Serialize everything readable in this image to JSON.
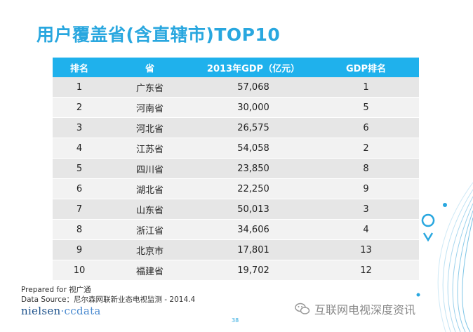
{
  "title": "用户覆盖省(含直辖市)TOP10",
  "table": {
    "headers": [
      "排名",
      "省",
      "2013年GDP（亿元）",
      "GDP排名"
    ],
    "rows": [
      [
        "1",
        "广东省",
        "57,068",
        "1"
      ],
      [
        "2",
        "河南省",
        "30,000",
        "5"
      ],
      [
        "3",
        "河北省",
        "26,575",
        "6"
      ],
      [
        "4",
        "江苏省",
        "54,058",
        "2"
      ],
      [
        "5",
        "四川省",
        "23,850",
        "8"
      ],
      [
        "6",
        "湖北省",
        "22,250",
        "9"
      ],
      [
        "7",
        "山东省",
        "50,013",
        "3"
      ],
      [
        "8",
        "浙江省",
        "34,606",
        "4"
      ],
      [
        "9",
        "北京市",
        "17,801",
        "13"
      ],
      [
        "10",
        "福建省",
        "19,702",
        "12"
      ]
    ]
  },
  "footer": {
    "prepared": "Prepared for 视广通",
    "source": "Data Source：尼尔森网联新业态电视监测 - 2014.4",
    "logo_a": "nielsen",
    "logo_b": "·ccdata",
    "page": "38"
  },
  "watermark": "互联网电视深度资讯",
  "colors": {
    "accent": "#29a7df",
    "header_bg": "#1fb1ec",
    "row_odd": "#e6e6e6",
    "row_even": "#f2f2f2"
  },
  "icons": {
    "watermark": "wechat-icon",
    "decoration": "map-pin-icon"
  }
}
